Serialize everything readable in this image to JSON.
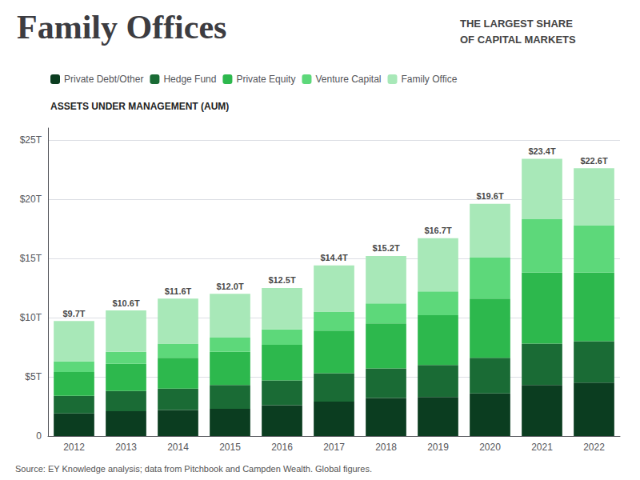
{
  "chart_data": {
    "type": "bar",
    "title": "Family Offices",
    "subtitle": "THE LARGEST SHARE\nOF CAPITAL MARKETS",
    "ylabel": "ASSETS UNDER MANAGEMENT (AUM)",
    "annotations": [
      "Source: EY Knowledge analysis; data from Pitchbook and Campden Wealth. Global figures."
    ],
    "categories": [
      "2012",
      "2013",
      "2014",
      "2015",
      "2016",
      "2017",
      "2018",
      "2019",
      "2020",
      "2021",
      "2022"
    ],
    "series": [
      {
        "name": "Private Debt/Other",
        "color": "#0b3d20",
        "values": [
          1.9,
          2.1,
          2.2,
          2.3,
          2.6,
          2.9,
          3.2,
          3.3,
          3.6,
          4.3,
          4.5
        ]
      },
      {
        "name": "Hedge Fund",
        "color": "#1a6b35",
        "values": [
          1.5,
          1.7,
          1.8,
          2.0,
          2.1,
          2.4,
          2.5,
          2.7,
          3.0,
          3.5,
          3.5
        ]
      },
      {
        "name": "Private Equity",
        "color": "#2db84d",
        "values": [
          2.0,
          2.3,
          2.6,
          2.8,
          3.0,
          3.6,
          3.8,
          4.2,
          5.0,
          6.0,
          5.8
        ]
      },
      {
        "name": "Venture Capital",
        "color": "#5dd87a",
        "values": [
          0.9,
          1.0,
          1.2,
          1.2,
          1.3,
          1.6,
          1.7,
          2.0,
          3.5,
          4.5,
          4.0
        ]
      },
      {
        "name": "Family Office",
        "color": "#a8e8b8",
        "values": [
          3.4,
          3.5,
          3.8,
          3.7,
          3.5,
          3.9,
          4.0,
          4.5,
          4.5,
          5.1,
          4.8
        ]
      }
    ],
    "totals": [
      9.7,
      10.6,
      11.6,
      12.0,
      12.5,
      14.4,
      15.2,
      16.7,
      19.6,
      23.4,
      22.6
    ],
    "total_labels": [
      "$9.7T",
      "$10.6T",
      "$11.6T",
      "$12.0T",
      "$12.5T",
      "$14.4T",
      "$15.2T",
      "$16.7T",
      "$19.6T",
      "$23.4T",
      "$22.6T"
    ],
    "ylim": [
      0,
      26
    ],
    "yticks": [
      0,
      {
        "value": 5,
        "label": "$5T"
      },
      {
        "value": 10,
        "label": "$10T"
      },
      {
        "value": 15,
        "label": "$15T"
      },
      {
        "value": 20,
        "label": "$20T"
      },
      {
        "value": 25,
        "label": "$25T"
      }
    ],
    "stacked": true,
    "grid": true,
    "legend": "top"
  }
}
